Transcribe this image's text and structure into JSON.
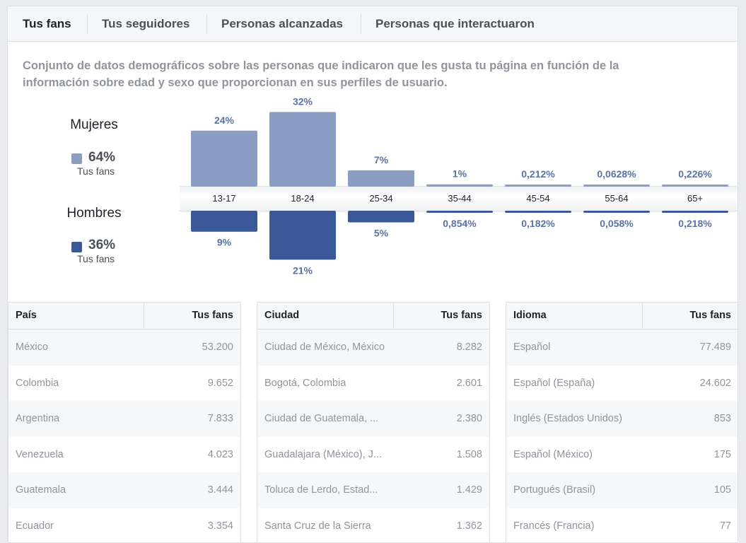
{
  "tabs": [
    {
      "label": "Tus fans",
      "active": true
    },
    {
      "label": "Tus seguidores",
      "active": false
    },
    {
      "label": "Personas alcanzadas",
      "active": false
    },
    {
      "label": "Personas que interactuaron",
      "active": false
    }
  ],
  "description": "Conjunto de datos demográficos sobre las personas que indicaron que les gusta tu página en función de la información sobre edad y sexo que proporcionan en sus perfiles de usuario.",
  "gender": {
    "women": {
      "title": "Mujeres",
      "percent": "64%",
      "sublabel": "Tus fans",
      "color": "#8b9dc3"
    },
    "men": {
      "title": "Hombres",
      "percent": "36%",
      "sublabel": "Tus fans",
      "color": "#3b5998"
    }
  },
  "chart_data": {
    "type": "bar",
    "categories": [
      "13-17",
      "18-24",
      "25-34",
      "35-44",
      "45-54",
      "55-64",
      "65+"
    ],
    "series": [
      {
        "name": "Mujeres",
        "values": [
          24,
          32,
          7,
          1,
          0.212,
          0.0628,
          0.226
        ],
        "labels": [
          "24%",
          "32%",
          "7%",
          "1%",
          "0,212%",
          "0,0628%",
          "0,226%"
        ],
        "color": "#8b9dc3"
      },
      {
        "name": "Hombres",
        "values": [
          9,
          21,
          5,
          0.854,
          0.182,
          0.058,
          0.218
        ],
        "labels": [
          "9%",
          "21%",
          "5%",
          "0,854%",
          "0,182%",
          "0,058%",
          "0,218%"
        ],
        "color": "#3b5998"
      }
    ],
    "label_color": "#5b72a6"
  },
  "tables": [
    {
      "col1": "País",
      "col2": "Tus fans",
      "rows": [
        [
          "México",
          "53.200"
        ],
        [
          "Colombia",
          "9.652"
        ],
        [
          "Argentina",
          "7.833"
        ],
        [
          "Venezuela",
          "4.023"
        ],
        [
          "Guatemala",
          "3.444"
        ],
        [
          "Ecuador",
          "3.354"
        ]
      ]
    },
    {
      "col1": "Ciudad",
      "col2": "Tus fans",
      "rows": [
        [
          "Ciudad de México, México",
          "8.282"
        ],
        [
          "Bogotá, Colombia",
          "2.601"
        ],
        [
          "Ciudad de Guatemala, ...",
          "2.380"
        ],
        [
          "Guadalajara (México), J...",
          "1.508"
        ],
        [
          "Toluca de Lerdo, Estad...",
          "1.429"
        ],
        [
          "Santa Cruz de la Sierra",
          "1.362"
        ]
      ]
    },
    {
      "col1": "Idioma",
      "col2": "Tus fans",
      "rows": [
        [
          "Español",
          "77.489"
        ],
        [
          "Español (España)",
          "24.602"
        ],
        [
          "Inglés (Estados Unidos)",
          "853"
        ],
        [
          "Español (México)",
          "175"
        ],
        [
          "Portugués (Brasil)",
          "105"
        ],
        [
          "Francés (Francia)",
          "77"
        ]
      ]
    }
  ]
}
